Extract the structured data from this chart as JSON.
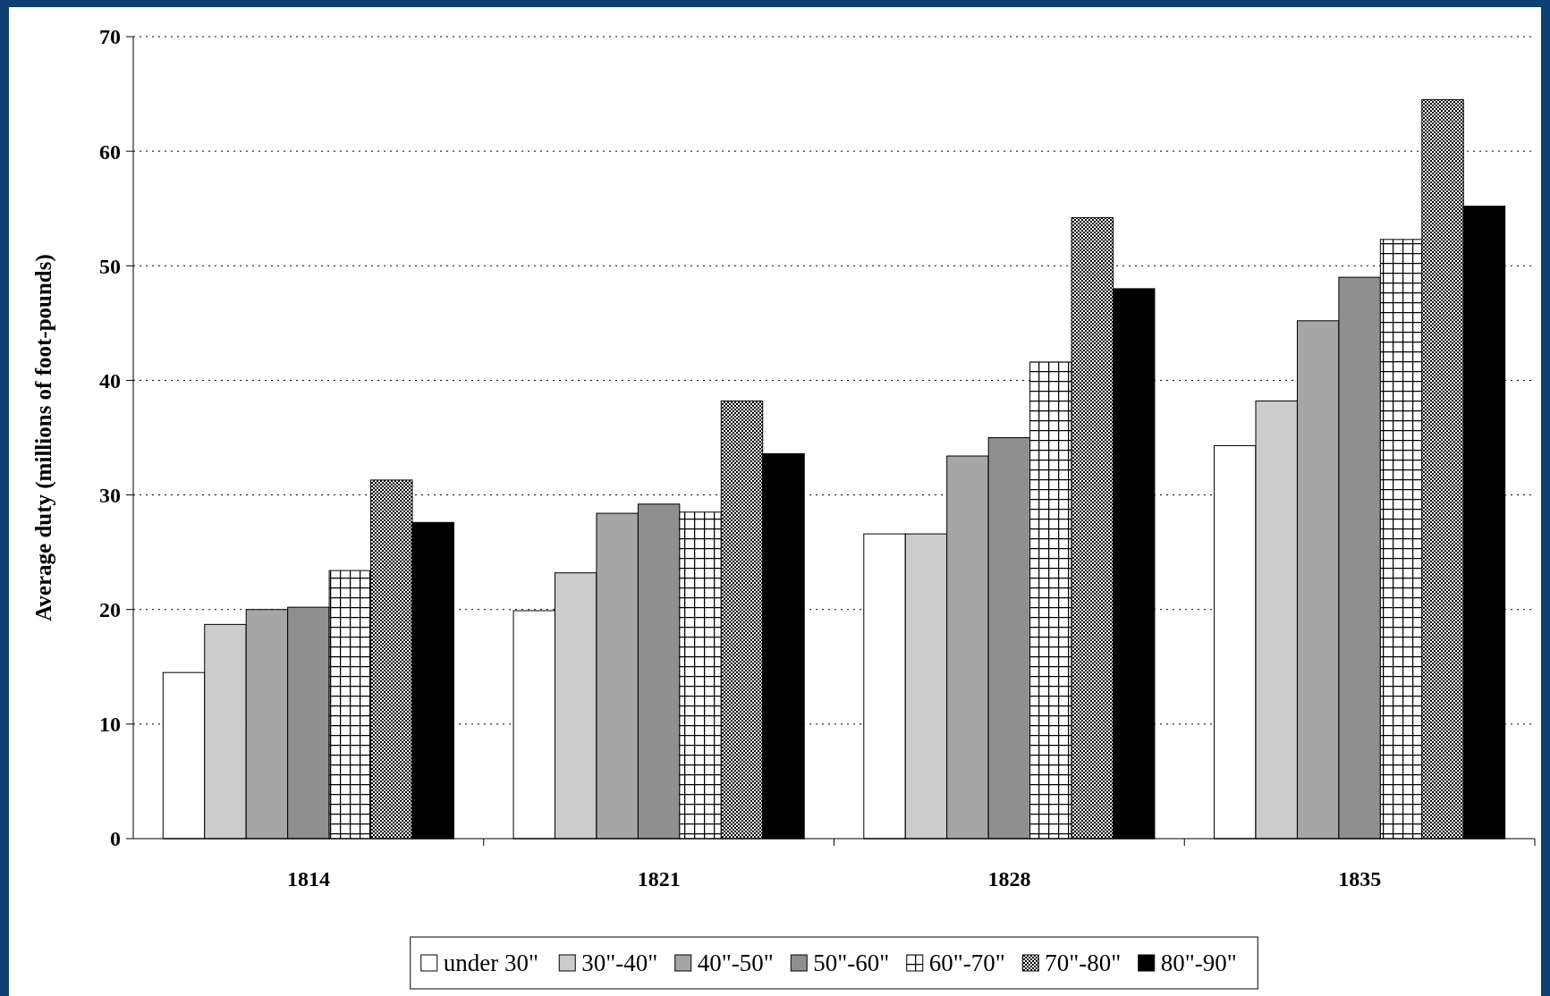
{
  "chart_data": {
    "type": "bar",
    "ylabel": "Average duty (millions of foot-pounds)",
    "categories": [
      "1814",
      "1821",
      "1828",
      "1835"
    ],
    "series": [
      {
        "name": "under 30\"",
        "color": "#ffffff",
        "values": [
          14.5,
          19.9,
          26.6,
          34.3
        ]
      },
      {
        "name": "30\"-40\"",
        "color": "#cccccc",
        "values": [
          18.7,
          23.2,
          26.6,
          38.2
        ]
      },
      {
        "name": "40\"-50\"",
        "color": "#a6a6a6",
        "values": [
          20.0,
          28.4,
          33.4,
          45.2
        ]
      },
      {
        "name": "50\"-60\"",
        "color": "#8f8f8f",
        "values": [
          20.2,
          29.2,
          35.0,
          49.0
        ]
      },
      {
        "name": "60\"-70\"",
        "color": "#000000",
        "values": [
          23.4,
          28.5,
          41.6,
          52.3
        ]
      },
      {
        "name": "70\"-80\"",
        "color": "#000000",
        "values": [
          31.3,
          38.2,
          54.2,
          64.5
        ]
      },
      {
        "name": "80\"-90\"",
        "color": "#000000",
        "values": [
          27.6,
          33.6,
          48.0,
          55.2
        ]
      }
    ],
    "ylim": [
      0,
      70
    ],
    "yticks": [
      0,
      10,
      20,
      30,
      40,
      50,
      60,
      70
    ],
    "grid": "y",
    "legend": "bottom"
  }
}
